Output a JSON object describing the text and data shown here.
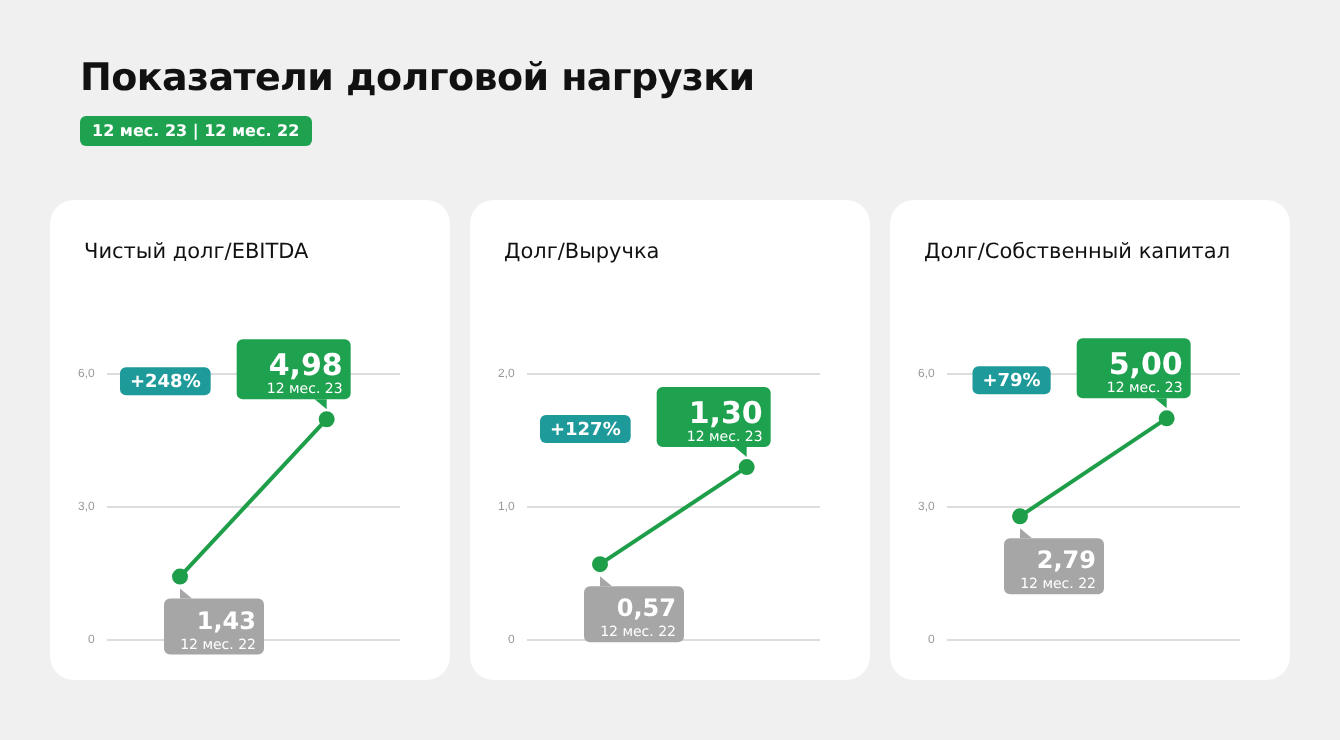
{
  "chart_data": [
    {
      "type": "other",
      "title": "Показатели долговой нагрузки",
      "subtitle": "12 мес. 23 | 12 мес. 22"
    },
    {
      "type": "line",
      "title": "Чистый долг/EBITDA",
      "categories": [
        "12 мес. 22",
        "12 мес. 23"
      ],
      "series": [
        {
          "color": "#1f9e4a",
          "values": [
            1.43,
            4.98
          ],
          "value_labels": [
            "1,43",
            "4,98"
          ]
        }
      ],
      "ylim": [
        0,
        6
      ],
      "yticks": [
        {
          "value": 0,
          "label": "0"
        },
        {
          "value": 3,
          "label": "3,0"
        },
        {
          "value": 6,
          "label": "6,0"
        }
      ],
      "grid": "y",
      "tick_labels": "y",
      "marker": "circle",
      "line_style": "solid",
      "annotations": [
        "+248%"
      ]
    },
    {
      "type": "line",
      "title": "Долг/Выручка",
      "categories": [
        "12 мес. 22",
        "12 мес. 23"
      ],
      "series": [
        {
          "color": "#1f9e4a",
          "values": [
            0.57,
            1.3
          ],
          "value_labels": [
            "0,57",
            "1,30"
          ]
        }
      ],
      "ylim": [
        0,
        2
      ],
      "yticks": [
        {
          "value": 0,
          "label": "0"
        },
        {
          "value": 1,
          "label": "1,0"
        },
        {
          "value": 2,
          "label": "2,0"
        }
      ],
      "grid": "y",
      "tick_labels": "y",
      "marker": "circle",
      "line_style": "solid",
      "annotations": [
        "+127%"
      ]
    },
    {
      "type": "line",
      "title": "Долг/Собственный капитал",
      "categories": [
        "12 мес. 22",
        "12 мес. 23"
      ],
      "series": [
        {
          "color": "#1f9e4a",
          "values": [
            2.79,
            5.0
          ],
          "value_labels": [
            "2,79",
            "5,00"
          ]
        }
      ],
      "ylim": [
        0,
        6
      ],
      "yticks": [
        {
          "value": 0,
          "label": "0"
        },
        {
          "value": 3,
          "label": "3,0"
        },
        {
          "value": 6,
          "label": "6,0"
        }
      ],
      "grid": "y",
      "tick_labels": "y",
      "marker": "circle",
      "line_style": "solid",
      "annotations": [
        "+79%"
      ]
    }
  ]
}
